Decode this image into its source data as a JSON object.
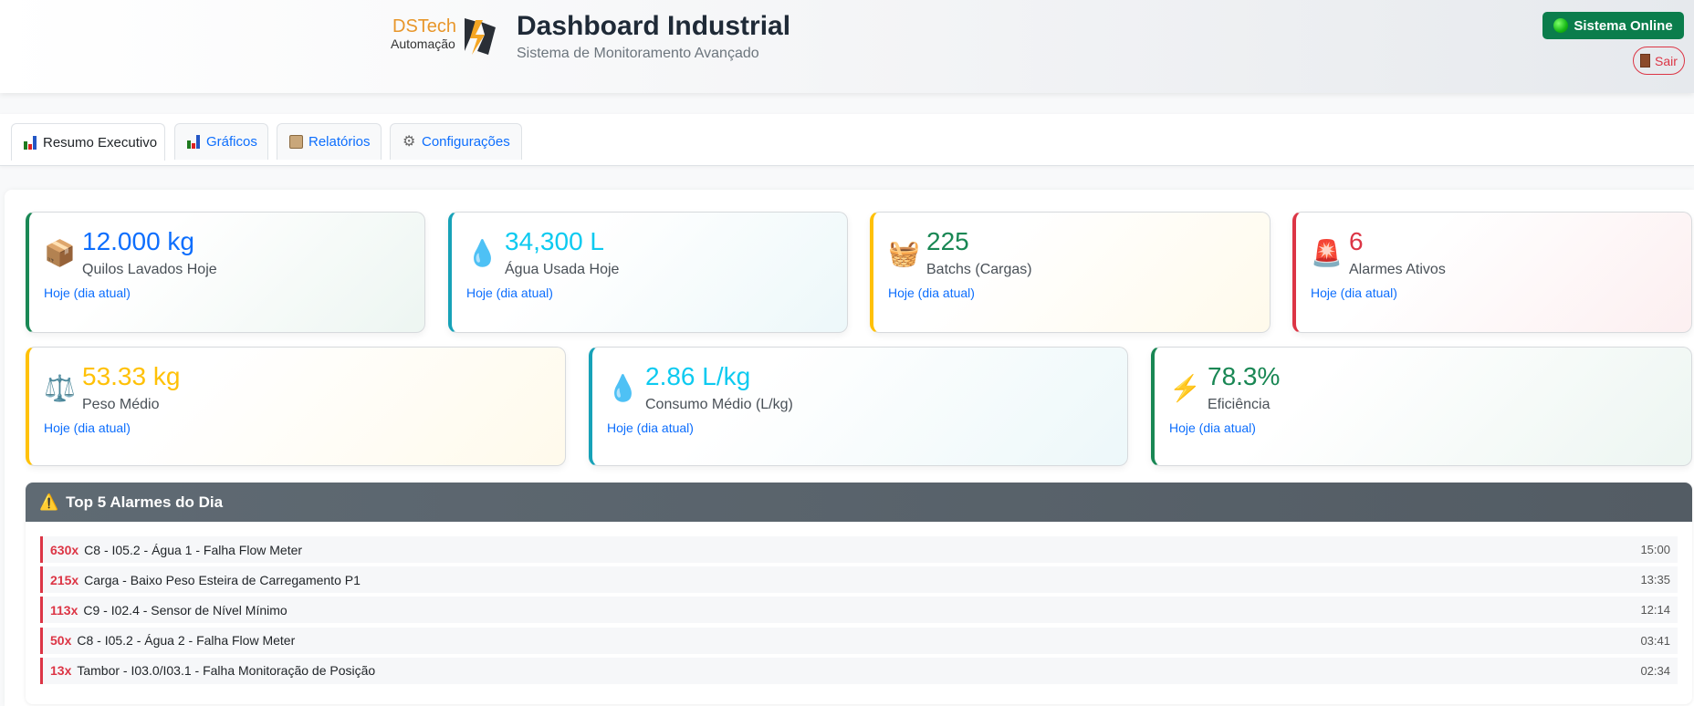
{
  "header": {
    "logo_brand": "DSTech",
    "logo_sub": "Automação",
    "title": "Dashboard Industrial",
    "subtitle": "Sistema de Monitoramento Avançado",
    "status": "Sistema Online",
    "logout": "Sair"
  },
  "tabs": [
    {
      "label": "Resumo Executivo",
      "icon": "bar-chart-icon",
      "active": true
    },
    {
      "label": "Gráficos",
      "icon": "bar-chart-icon"
    },
    {
      "label": "Relatórios",
      "icon": "clipboard-icon"
    },
    {
      "label": "Configurações",
      "icon": "gear-icon"
    }
  ],
  "cards": [
    {
      "value": "12.000 kg",
      "label": "Quilos Lavados Hoje",
      "period": "Hoje (dia atual)",
      "icon": "📦",
      "color": "#0d6efd",
      "border": "#198754"
    },
    {
      "value": "34,300 L",
      "label": "Água Usada Hoje",
      "period": "Hoje (dia atual)",
      "icon": "💧",
      "color": "#0dcaf0",
      "border": "#17a2b8"
    },
    {
      "value": "225",
      "label": "Batchs (Cargas)",
      "period": "Hoje (dia atual)",
      "icon": "🧺",
      "color": "#198754",
      "border": "#ffc107"
    },
    {
      "value": "6",
      "label": "Alarmes Ativos",
      "period": "Hoje (dia atual)",
      "icon": "🚨",
      "color": "#dc3545",
      "border": "#dc3545"
    },
    {
      "value": "53.33 kg",
      "label": "Peso Médio",
      "period": "Hoje (dia atual)",
      "icon": "⚖️",
      "color": "#ffc107",
      "border": "#ffc107"
    },
    {
      "value": "2.86 L/kg",
      "label": "Consumo Médio (L/kg)",
      "period": "Hoje (dia atual)",
      "icon": "💧",
      "color": "#0dcaf0",
      "border": "#17a2b8"
    },
    {
      "value": "78.3%",
      "label": "Eficiência",
      "period": "Hoje (dia atual)",
      "icon": "⚡",
      "color": "#198754",
      "border": "#198754"
    }
  ],
  "alarms": {
    "title": "Top 5 Alarmes do Dia",
    "items": [
      {
        "count": "630x",
        "text": "C8 - I05.2 - Água 1 - Falha Flow Meter",
        "time": "15:00"
      },
      {
        "count": "215x",
        "text": "Carga - Baixo Peso Esteira de Carregamento P1",
        "time": "13:35"
      },
      {
        "count": "113x",
        "text": "C9 - I02.4 - Sensor de Nível Mínimo",
        "time": "12:14"
      },
      {
        "count": "50x",
        "text": "C8 - I05.2 - Água 2 - Falha Flow Meter",
        "time": "03:41"
      },
      {
        "count": "13x",
        "text": "Tambor - I03.0/I03.1 - Falha Monitoração de Posição",
        "time": "02:34"
      }
    ]
  }
}
